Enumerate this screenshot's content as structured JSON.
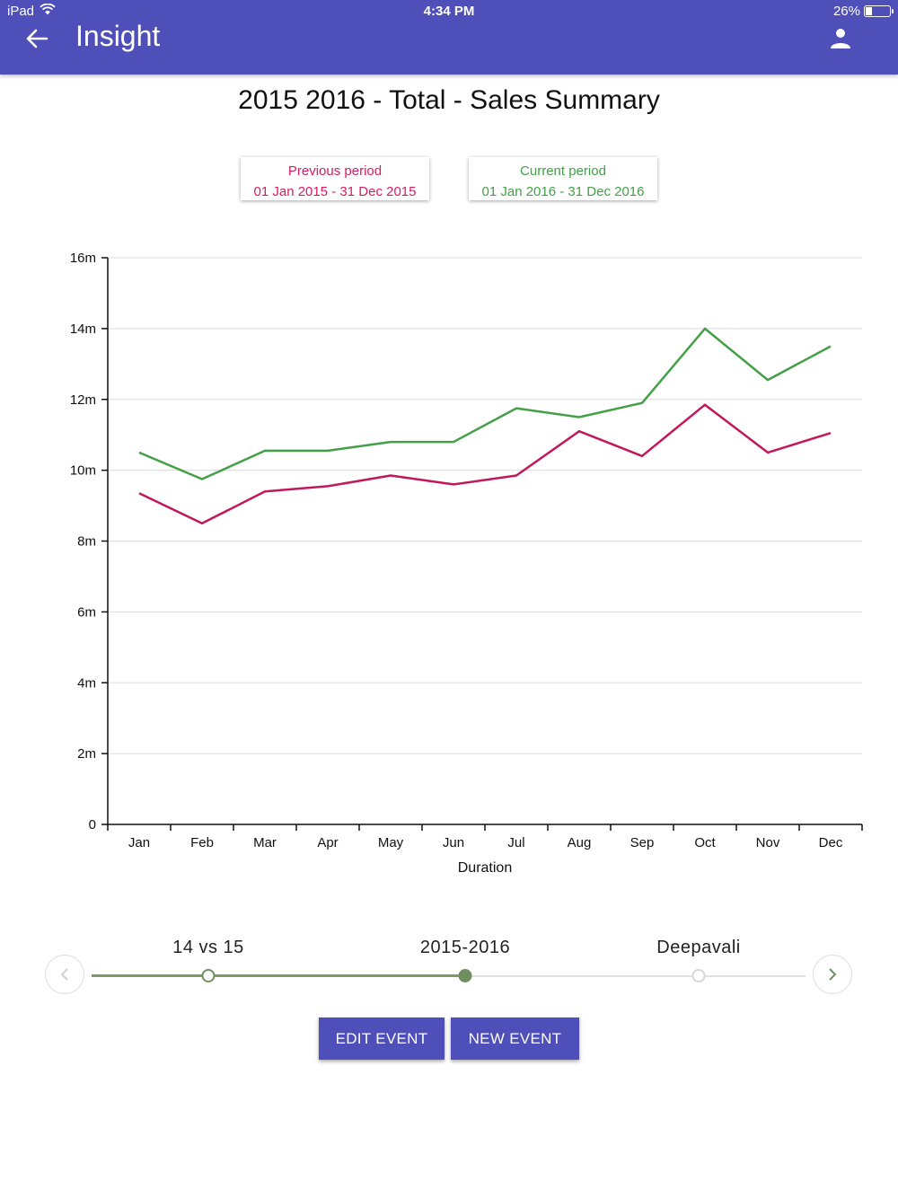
{
  "status_bar": {
    "device": "iPad",
    "time": "4:34 PM",
    "battery": "26%",
    "battery_level": 0.26
  },
  "app_bar": {
    "title": "Insight",
    "back_icon": "arrow-left-icon",
    "user_icon": "person-icon"
  },
  "page": {
    "title": "2015 2016 - Total - Sales Summary"
  },
  "periods": {
    "previous": {
      "label": "Previous period",
      "range": "01 Jan 2015 - 31 Dec 2015",
      "color": "#d81b60"
    },
    "current": {
      "label": "Current period",
      "range": "01 Jan 2016 - 31 Dec 2016",
      "color": "#43a047"
    }
  },
  "chart_data": {
    "type": "line",
    "categories": [
      "Jan",
      "Feb",
      "Mar",
      "Apr",
      "May",
      "Jun",
      "Jul",
      "Aug",
      "Sep",
      "Oct",
      "Nov",
      "Dec"
    ],
    "series": [
      {
        "name": "Previous period",
        "color": "#c2185b",
        "values": [
          9.35,
          8.5,
          9.4,
          9.55,
          9.85,
          9.6,
          9.85,
          11.1,
          10.4,
          11.85,
          10.5,
          11.05
        ]
      },
      {
        "name": "Current period",
        "color": "#43a047",
        "values": [
          10.5,
          9.75,
          10.55,
          10.55,
          10.8,
          10.8,
          11.75,
          11.5,
          11.9,
          14.0,
          12.55,
          13.5
        ]
      }
    ],
    "y_ticks": [
      "0",
      "2m",
      "4m",
      "6m",
      "8m",
      "10m",
      "12m",
      "14m",
      "16m"
    ],
    "ylim": [
      0,
      16
    ],
    "xlabel": "Duration",
    "ylabel": "",
    "grid": true
  },
  "timeline": {
    "items": [
      {
        "label": "14 vs 15",
        "state": "visited"
      },
      {
        "label": "2015-2016",
        "state": "active"
      },
      {
        "label": "Deepavali",
        "state": "future"
      }
    ],
    "progress": 0.53
  },
  "actions": {
    "edit_label": "EDIT EVENT",
    "new_label": "NEW EVENT"
  },
  "colors": {
    "primary": "#4f4fba",
    "timeline_active": "#6f8f5e"
  }
}
